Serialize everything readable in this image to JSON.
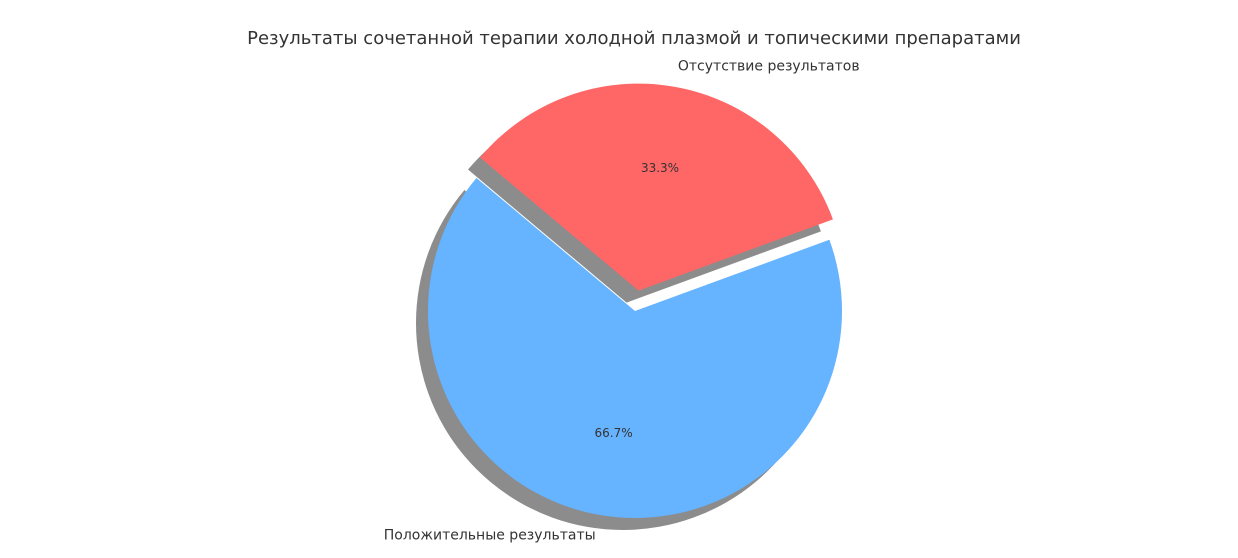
{
  "chart_data": {
    "type": "pie",
    "title": "Результаты сочетанной терапии холодной плазмой и топическими препаратами",
    "categories": [
      "Положительные результаты",
      "Отсутствие результатов"
    ],
    "values": [
      66.7,
      33.3
    ],
    "value_labels": [
      "66.7%",
      "33.3%"
    ],
    "colors": [
      "#66b3ff",
      "#ff6666"
    ]
  }
}
